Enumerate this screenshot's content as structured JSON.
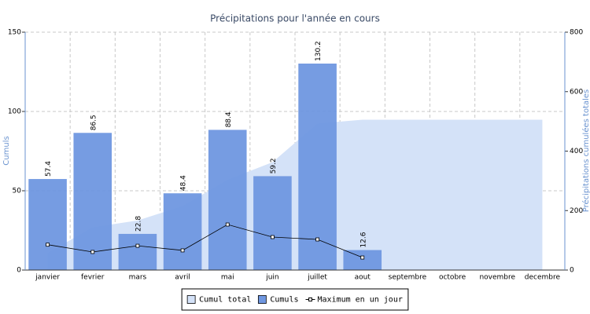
{
  "chart_data": {
    "type": "bar",
    "title": "Précipitations pour l'année en cours",
    "ylabel": "Cumuls",
    "y2label": "Précipitations cumulées totales",
    "categories": [
      "janvier",
      "fevrier",
      "mars",
      "avril",
      "mai",
      "juin",
      "juillet",
      "aout",
      "septembre",
      "octobre",
      "novembre",
      "decembre"
    ],
    "series": [
      {
        "name": "Cumul total",
        "type": "area",
        "axis": "y2",
        "color": "#d4e2f8",
        "values": [
          57.4,
          143.9,
          166.7,
          215.1,
          303.5,
          362.7,
          492.9,
          505.5,
          505.5,
          505.5,
          505.5,
          505.5
        ]
      },
      {
        "name": "Cumuls",
        "type": "bar",
        "color": "#6f97e0",
        "values": [
          57.4,
          86.5,
          22.8,
          48.4,
          88.4,
          59.2,
          130.2,
          12.6,
          null,
          null,
          null,
          null
        ]
      },
      {
        "name": "Maximum en un jour",
        "type": "line",
        "color": "#000000",
        "values": [
          16,
          11.4,
          15.3,
          12.4,
          28.7,
          20.8,
          19.3,
          7.9,
          null,
          null,
          null,
          null
        ]
      }
    ],
    "ylim": [
      0,
      150
    ],
    "yticks": [
      0,
      50,
      100,
      150
    ],
    "y2lim": [
      0,
      800
    ],
    "y2ticks": [
      0,
      200,
      400,
      600,
      800
    ],
    "grid": true,
    "legend": "bottom"
  }
}
